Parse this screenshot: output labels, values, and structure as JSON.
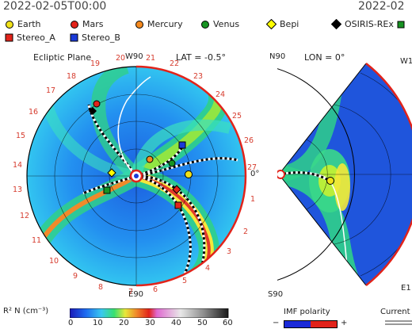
{
  "header": {
    "timestamp": "2022-02-05T00:00",
    "timestamp_right": "2022-02"
  },
  "legend": [
    {
      "label": "Earth",
      "color": "#f1e21a",
      "shape": "circle"
    },
    {
      "label": "Mars",
      "color": "#e2231a",
      "shape": "circle"
    },
    {
      "label": "Mercury",
      "color": "#f58a1f",
      "shape": "circle"
    },
    {
      "label": "Venus",
      "color": "#179322",
      "shape": "circle"
    },
    {
      "label": "Bepi",
      "color": "#ffff00",
      "shape": "diamond"
    },
    {
      "label": "OSIRIS-REx",
      "color": "#000000",
      "shape": "diamond"
    },
    {
      "label": "Stereo_A",
      "color": "#e2231a",
      "shape": "square"
    },
    {
      "label": "Stereo_B",
      "color": "#1a3ad8",
      "shape": "square"
    }
  ],
  "ecliptic": {
    "title": "Ecliptic Plane",
    "lat_label": "LAT = -0.5°",
    "top_label": "W90",
    "bottom_label": "E90",
    "right_label": "0°",
    "clock_numbers": [
      "1",
      "2",
      "3",
      "4",
      "5",
      "6",
      "7",
      "8",
      "9",
      "10",
      "11",
      "12",
      "13",
      "14",
      "15",
      "16",
      "17",
      "18",
      "19",
      "20",
      "21",
      "22",
      "23",
      "24",
      "25",
      "26",
      "27"
    ]
  },
  "meridional": {
    "lon_label": "LON = 0°",
    "top_label": "N90",
    "bottom_label": "S90",
    "right_label": "0°",
    "right_top_label": "W1",
    "right_bottom_label": "E1"
  },
  "colorbar": {
    "title": "R² N (cm⁻³)",
    "ticks": [
      "0",
      "10",
      "20",
      "30",
      "40",
      "50",
      "60"
    ]
  },
  "imf": {
    "title": "IMF polarity",
    "minus": "−",
    "plus": "+"
  },
  "current": {
    "title": "Current"
  }
}
